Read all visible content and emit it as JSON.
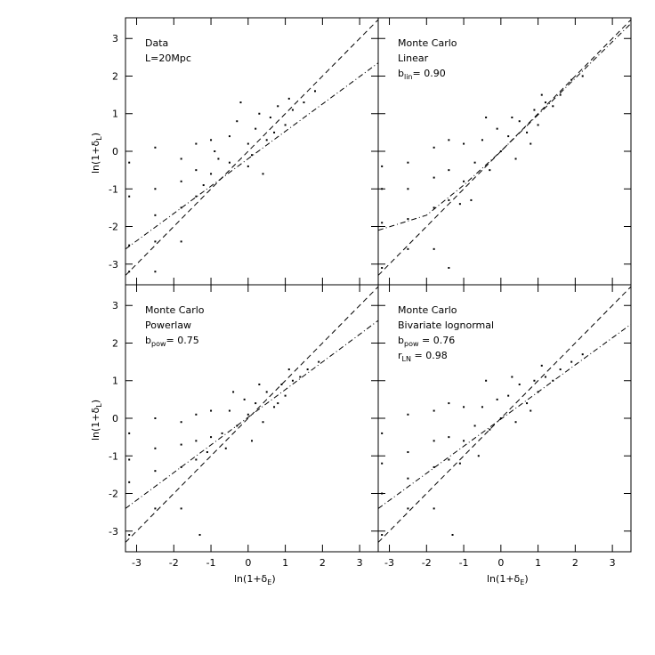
{
  "chart_data": [
    {
      "type": "scatter",
      "annotations": [
        {
          "text": "Data"
        },
        {
          "text": "L=20Mpc"
        }
      ],
      "ylabel": {
        "main": "ln(1+δ",
        "sub": "L",
        "end": ")"
      },
      "xlim": [
        -3.3,
        3.5
      ],
      "ylim": [
        -3.55,
        3.55
      ],
      "xticks": [
        -3,
        -2,
        -1,
        0,
        1,
        2,
        3
      ],
      "yticks": [
        -3,
        -2,
        -1,
        0,
        1,
        2,
        3
      ],
      "series": [
        {
          "type": "points",
          "color": "#000000",
          "x": [
            -3.2,
            -3.2,
            -3.2,
            -3.2,
            -2.5,
            -2.5,
            -2.5,
            -2.5,
            -2.5,
            -1.8,
            -1.8,
            -1.8,
            -1.8,
            -1.4,
            -1.4,
            -1.4,
            -1.0,
            -1.0,
            -0.8,
            -0.5,
            -0.5,
            -0.3,
            0.0,
            0.0,
            0.2,
            0.3,
            0.5,
            0.6,
            0.8,
            1.0,
            1.2,
            1.5,
            1.8,
            -0.2,
            0.4,
            -1.2,
            -0.9,
            0.1,
            0.7,
            1.1
          ],
          "y": [
            -0.3,
            -1.2,
            -2.5,
            -3.2,
            0.1,
            -1.0,
            -1.7,
            -2.4,
            -3.2,
            -0.2,
            -0.8,
            -1.5,
            -2.4,
            0.2,
            -0.5,
            -1.2,
            0.3,
            -0.6,
            -0.2,
            0.4,
            -0.3,
            0.8,
            0.2,
            -0.4,
            0.6,
            1.0,
            0.3,
            0.9,
            1.2,
            0.7,
            1.1,
            1.3,
            1.6,
            1.3,
            -0.6,
            -0.9,
            0.0,
            -0.1,
            0.5,
            1.4
          ]
        },
        {
          "type": "line",
          "dash": "6,4",
          "x": [
            -3.3,
            3.5
          ],
          "y": [
            -3.3,
            3.5
          ]
        },
        {
          "type": "line",
          "dash": "6,3,1,3",
          "x": [
            -3.3,
            3.5
          ],
          "y": [
            -2.6,
            2.35
          ]
        }
      ]
    },
    {
      "type": "scatter",
      "annotations": [
        {
          "text": "Monte Carlo"
        },
        {
          "text": "Linear"
        },
        {
          "text": "b",
          "sub": "lin",
          "rest": "= 0.90"
        }
      ],
      "xlim": [
        -3.3,
        3.5
      ],
      "ylim": [
        -3.55,
        3.55
      ],
      "xticks": [
        -3,
        -2,
        -1,
        0,
        1,
        2,
        3
      ],
      "yticks": [
        -3,
        -2,
        -1,
        0,
        1,
        2,
        3
      ],
      "series": [
        {
          "type": "points",
          "color": "#000000",
          "x": [
            -3.2,
            -3.2,
            -3.2,
            -3.2,
            -2.5,
            -2.5,
            -2.5,
            -2.5,
            -1.8,
            -1.8,
            -1.8,
            -1.8,
            -1.4,
            -1.4,
            -1.4,
            -1.0,
            -1.0,
            -0.7,
            -0.5,
            -0.3,
            -0.1,
            0.0,
            0.2,
            0.4,
            0.5,
            0.7,
            0.9,
            1.0,
            1.2,
            1.4,
            1.6,
            1.9,
            2.2,
            -0.4,
            0.3,
            -1.1,
            0.8,
            1.1,
            -1.4,
            -0.8
          ],
          "y": [
            -0.4,
            -1.0,
            -1.9,
            -3.1,
            -0.3,
            -1.0,
            -1.8,
            -2.6,
            0.1,
            -0.7,
            -1.5,
            -2.6,
            0.3,
            -0.5,
            -1.3,
            0.2,
            -0.8,
            -0.3,
            0.3,
            -0.5,
            0.6,
            0.0,
            0.4,
            -0.2,
            0.8,
            0.5,
            1.1,
            0.7,
            1.3,
            1.2,
            1.5,
            1.9,
            2.0,
            0.9,
            0.9,
            -1.4,
            0.2,
            1.5,
            -3.1,
            -1.3
          ]
        },
        {
          "type": "line",
          "dash": "6,4",
          "x": [
            -3.3,
            3.5
          ],
          "y": [
            -3.3,
            3.5
          ]
        },
        {
          "type": "line",
          "dash": "6,3,1,3",
          "x": [
            -3.3,
            -2.0,
            -1.0,
            0.0,
            3.5
          ],
          "y": [
            -2.1,
            -1.7,
            -0.9,
            0.0,
            3.4
          ]
        }
      ]
    },
    {
      "type": "scatter",
      "annotations": [
        {
          "text": "Monte Carlo"
        },
        {
          "text": "Powerlaw"
        },
        {
          "text": "b",
          "sub": "pow",
          "rest": "= 0.75"
        }
      ],
      "xlabel": {
        "main": "ln(1+δ",
        "sub": "E",
        "end": ")"
      },
      "ylabel": {
        "main": "ln(1+δ",
        "sub": "L",
        "end": ")"
      },
      "xlim": [
        -3.3,
        3.5
      ],
      "ylim": [
        -3.55,
        3.55
      ],
      "xticks": [
        -3,
        -2,
        -1,
        0,
        1,
        2,
        3
      ],
      "yticks": [
        -3,
        -2,
        -1,
        0,
        1,
        2,
        3
      ],
      "series": [
        {
          "type": "points",
          "color": "#000000",
          "x": [
            -3.2,
            -3.2,
            -3.2,
            -3.2,
            -2.5,
            -2.5,
            -2.5,
            -2.5,
            -1.8,
            -1.8,
            -1.8,
            -1.8,
            -1.4,
            -1.4,
            -1.4,
            -1.0,
            -1.0,
            -0.7,
            -0.5,
            -0.3,
            -0.1,
            0.0,
            0.2,
            0.4,
            0.5,
            0.7,
            0.9,
            1.0,
            1.2,
            1.4,
            1.6,
            1.9,
            -0.4,
            0.3,
            -1.1,
            0.8,
            1.1,
            -1.3,
            -0.6,
            0.1
          ],
          "y": [
            -0.4,
            -1.1,
            -1.7,
            -3.1,
            0.0,
            -0.8,
            -1.4,
            -2.4,
            -0.1,
            -0.7,
            -1.3,
            -2.4,
            0.1,
            -0.6,
            -1.1,
            0.2,
            -0.5,
            -0.4,
            0.2,
            -0.2,
            0.5,
            0.1,
            0.4,
            -0.1,
            0.7,
            0.3,
            0.9,
            0.6,
            1.0,
            1.1,
            1.3,
            1.5,
            0.7,
            0.9,
            -0.9,
            0.4,
            1.3,
            -3.1,
            -0.8,
            -0.6
          ]
        },
        {
          "type": "line",
          "dash": "6,4",
          "x": [
            -3.3,
            3.5
          ],
          "y": [
            -3.3,
            3.5
          ]
        },
        {
          "type": "line",
          "dash": "6,3,1,3",
          "x": [
            -3.3,
            3.5
          ],
          "y": [
            -2.4,
            2.6
          ]
        }
      ]
    },
    {
      "type": "scatter",
      "annotations": [
        {
          "text": "Monte Carlo"
        },
        {
          "text": "Bivariate lognormal"
        },
        {
          "text": "b",
          "sub": "pow",
          "rest": " = 0.76"
        },
        {
          "text": "r",
          "sub": "LN",
          "rest": " = 0.98"
        }
      ],
      "xlabel": {
        "main": "ln(1+δ",
        "sub": "E",
        "end": ")"
      },
      "xlim": [
        -3.3,
        3.5
      ],
      "ylim": [
        -3.55,
        3.55
      ],
      "xticks": [
        -3,
        -2,
        -1,
        0,
        1,
        2,
        3
      ],
      "yticks": [
        -3,
        -2,
        -1,
        0,
        1,
        2,
        3
      ],
      "series": [
        {
          "type": "points",
          "color": "#000000",
          "x": [
            -3.2,
            -3.2,
            -3.2,
            -3.2,
            -2.5,
            -2.5,
            -2.5,
            -2.5,
            -1.8,
            -1.8,
            -1.8,
            -1.8,
            -1.4,
            -1.4,
            -1.4,
            -1.0,
            -1.0,
            -0.7,
            -0.5,
            -0.3,
            -0.1,
            0.0,
            0.2,
            0.4,
            0.5,
            0.7,
            0.9,
            1.0,
            1.2,
            1.4,
            1.6,
            1.9,
            2.2,
            -0.4,
            0.3,
            -1.1,
            0.8,
            1.1,
            -1.3,
            -0.6
          ],
          "y": [
            -0.4,
            -1.2,
            -2.0,
            -3.1,
            0.1,
            -0.9,
            -1.6,
            -2.4,
            0.2,
            -0.6,
            -1.3,
            -2.4,
            0.4,
            -0.5,
            -1.1,
            0.3,
            -0.6,
            -0.2,
            0.3,
            -0.3,
            0.5,
            0.0,
            0.6,
            -0.1,
            0.9,
            0.4,
            1.0,
            0.7,
            1.1,
            1.0,
            1.3,
            1.5,
            1.7,
            1.0,
            1.1,
            -1.2,
            0.2,
            1.4,
            -3.1,
            -1.0
          ]
        },
        {
          "type": "line",
          "dash": "6,4",
          "x": [
            -3.3,
            3.5
          ],
          "y": [
            -3.3,
            3.5
          ]
        },
        {
          "type": "line",
          "dash": "6,3,1,3",
          "x": [
            -3.3,
            3.5
          ],
          "y": [
            -2.4,
            2.5
          ]
        }
      ]
    }
  ]
}
